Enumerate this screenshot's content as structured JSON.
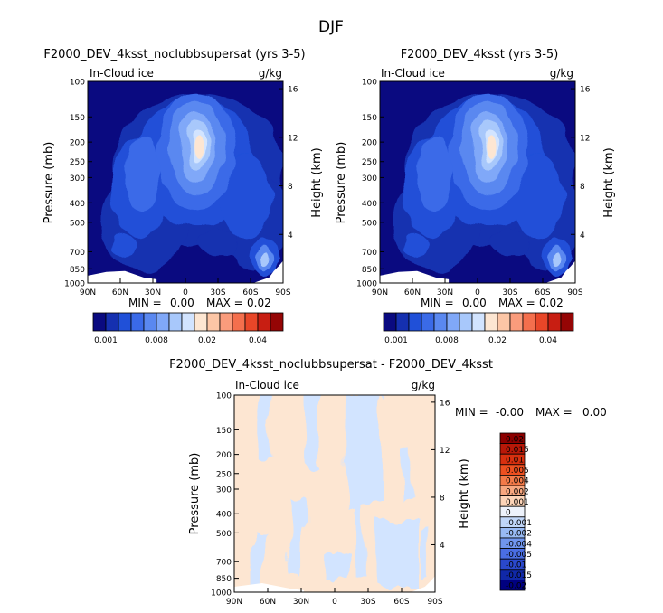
{
  "figure": {
    "title": "DJF"
  },
  "panels": [
    {
      "title": "F2000_DEV_4ksst_noclubbsupersat (yrs 3-5)",
      "variable": "In-Cloud ice",
      "units": "g/kg",
      "stats": {
        "min_label": "MIN =",
        "min": "0.00",
        "max_label": "MAX =",
        "max": "0.02"
      }
    },
    {
      "title": "F2000_DEV_4ksst (yrs 3-5)",
      "variable": "In-Cloud ice",
      "units": "g/kg",
      "stats": {
        "min_label": "MIN =",
        "min": "0.00",
        "max_label": "MAX =",
        "max": "0.02"
      }
    },
    {
      "title": "F2000_DEV_4ksst_noclubbsupersat - F2000_DEV_4ksst",
      "variable": "In-Cloud ice",
      "units": "g/kg",
      "stats": {
        "min_label": "MIN =",
        "min": "-0.00",
        "max_label": "MAX =",
        "max": "0.00"
      }
    }
  ],
  "chart_data": [
    {
      "type": "heatmap",
      "title": "F2000_DEV_4ksst_noclubbsupersat (yrs 3-5)",
      "xlabel": "",
      "ylabel": "Pressure (mb)",
      "y2label": "Height (km)",
      "xticks": [
        "90N",
        "60N",
        "30N",
        "0",
        "30S",
        "60S",
        "90S"
      ],
      "yticks": [
        "100",
        "150",
        "200",
        "250",
        "300",
        "400",
        "500",
        "700",
        "850",
        "1000"
      ],
      "y2ticks": [
        "16",
        "12",
        "8",
        "4"
      ],
      "ylim": [
        1000,
        100
      ],
      "colorbar_levels": [
        0.001,
        0.002,
        0.004,
        0.006,
        0.008,
        0.01,
        0.012,
        0.015,
        0.02,
        0.025,
        0.03,
        0.035,
        0.04,
        0.045,
        0.05
      ],
      "colorbar_labels": [
        "0.001",
        "0.008",
        "0.02",
        "0.04"
      ],
      "min": 0.0,
      "max": 0.02
    },
    {
      "type": "heatmap",
      "title": "F2000_DEV_4ksst (yrs 3-5)",
      "xlabel": "",
      "ylabel": "Pressure (mb)",
      "y2label": "Height (km)",
      "xticks": [
        "90N",
        "60N",
        "30N",
        "0",
        "30S",
        "60S",
        "90S"
      ],
      "yticks": [
        "100",
        "150",
        "200",
        "250",
        "300",
        "400",
        "500",
        "700",
        "850",
        "1000"
      ],
      "y2ticks": [
        "16",
        "12",
        "8",
        "4"
      ],
      "ylim": [
        1000,
        100
      ],
      "colorbar_levels": [
        0.001,
        0.002,
        0.004,
        0.006,
        0.008,
        0.01,
        0.012,
        0.015,
        0.02,
        0.025,
        0.03,
        0.035,
        0.04,
        0.045,
        0.05
      ],
      "colorbar_labels": [
        "0.001",
        "0.008",
        "0.02",
        "0.04"
      ],
      "min": 0.0,
      "max": 0.02
    },
    {
      "type": "heatmap",
      "title": "F2000_DEV_4ksst_noclubbsupersat - F2000_DEV_4ksst",
      "xlabel": "",
      "ylabel": "Pressure (mb)",
      "y2label": "Height (km)",
      "xticks": [
        "90N",
        "60N",
        "30N",
        "0",
        "30S",
        "60S",
        "90S"
      ],
      "yticks": [
        "100",
        "150",
        "200",
        "250",
        "300",
        "400",
        "500",
        "700",
        "850",
        "1000"
      ],
      "y2ticks": [
        "16",
        "12",
        "8",
        "4"
      ],
      "ylim": [
        1000,
        100
      ],
      "colorbar_labels": [
        "0.02",
        "0.015",
        "0.01",
        "0.005",
        "0.004",
        "0.002",
        "0.001",
        "0",
        "-0.001",
        "-0.002",
        "-0.004",
        "-0.005",
        "-0.01",
        "-0.015",
        "-0.02"
      ],
      "min": -0.0,
      "max": 0.0
    }
  ],
  "colors": {
    "upper_colorbar": [
      "#0a0a80",
      "#1530b0",
      "#2050d8",
      "#3a6ae8",
      "#5a88f0",
      "#80a8f8",
      "#a8c8fb",
      "#d2e4ff",
      "#fde6d2",
      "#fcc6a6",
      "#fa9c7c",
      "#f46f4d",
      "#e84628",
      "#c81e12",
      "#950505"
    ],
    "diff_colorbar": [
      "#8c0000",
      "#b81808",
      "#d8300f",
      "#ee5020",
      "#f47a48",
      "#f8a880",
      "#fcd4b8",
      "#edf2fb",
      "#c0d6f8",
      "#98baf4",
      "#7096ee",
      "#4a6ee4",
      "#2a48cc",
      "#1028a8",
      "#000080"
    ],
    "field_low": "#0a0a80",
    "diff_pos": "#fde6d2",
    "diff_neg": "#d2e4ff"
  }
}
